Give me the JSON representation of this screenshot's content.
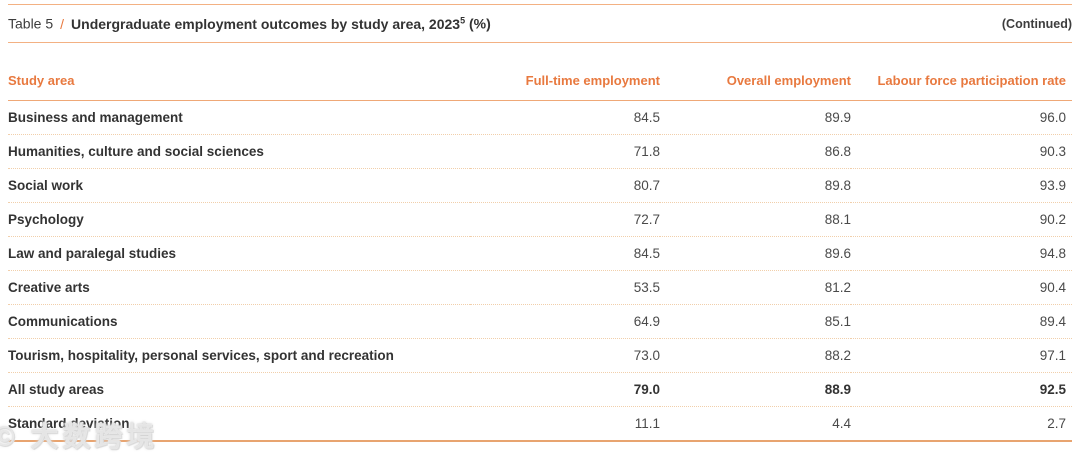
{
  "page": {
    "header": {
      "table_label": "Table 5",
      "divider": "/",
      "title": "Undergraduate employment outcomes by study area, 2023",
      "title_superscript": "5",
      "title_unit": "(%)",
      "continued_note": "(Continued)"
    },
    "columns": {
      "study_area": "Study area",
      "full_time": "Full-time employment",
      "overall": "Overall employment",
      "labour_force": "Labour force participation rate"
    },
    "rows": [
      {
        "label": "Business and management",
        "full_time": "84.5",
        "overall": "89.9",
        "labour_force": "96.0"
      },
      {
        "label": "Humanities, culture and social sciences",
        "full_time": "71.8",
        "overall": "86.8",
        "labour_force": "90.3"
      },
      {
        "label": "Social work",
        "full_time": "80.7",
        "overall": "89.8",
        "labour_force": "93.9"
      },
      {
        "label": "Psychology",
        "full_time": "72.7",
        "overall": "88.1",
        "labour_force": "90.2"
      },
      {
        "label": "Law and paralegal studies",
        "full_time": "84.5",
        "overall": "89.6",
        "labour_force": "94.8"
      },
      {
        "label": "Creative arts",
        "full_time": "53.5",
        "overall": "81.2",
        "labour_force": "90.4"
      },
      {
        "label": "Communications",
        "full_time": "64.9",
        "overall": "85.1",
        "labour_force": "89.4"
      },
      {
        "label": "Tourism, hospitality, personal services, sport and recreation",
        "full_time": "73.0",
        "overall": "88.2",
        "labour_force": "97.1"
      },
      {
        "label": "All study areas",
        "full_time": "79.0",
        "overall": "88.9",
        "labour_force": "92.5"
      },
      {
        "label": "Standard deviation",
        "full_time": "11.1",
        "overall": "4.4",
        "labour_force": "2.7"
      }
    ],
    "watermark": "© 大数跨境",
    "colors": {
      "accent_orange": "#E8793F",
      "rule_orange": "#F3B183",
      "header_rule": "#EFA877",
      "dotted_rule": "#F1CFAB",
      "bottom_rule": "#E8A470",
      "text_dark": "#333333",
      "text_value": "#4a4a4a"
    }
  }
}
